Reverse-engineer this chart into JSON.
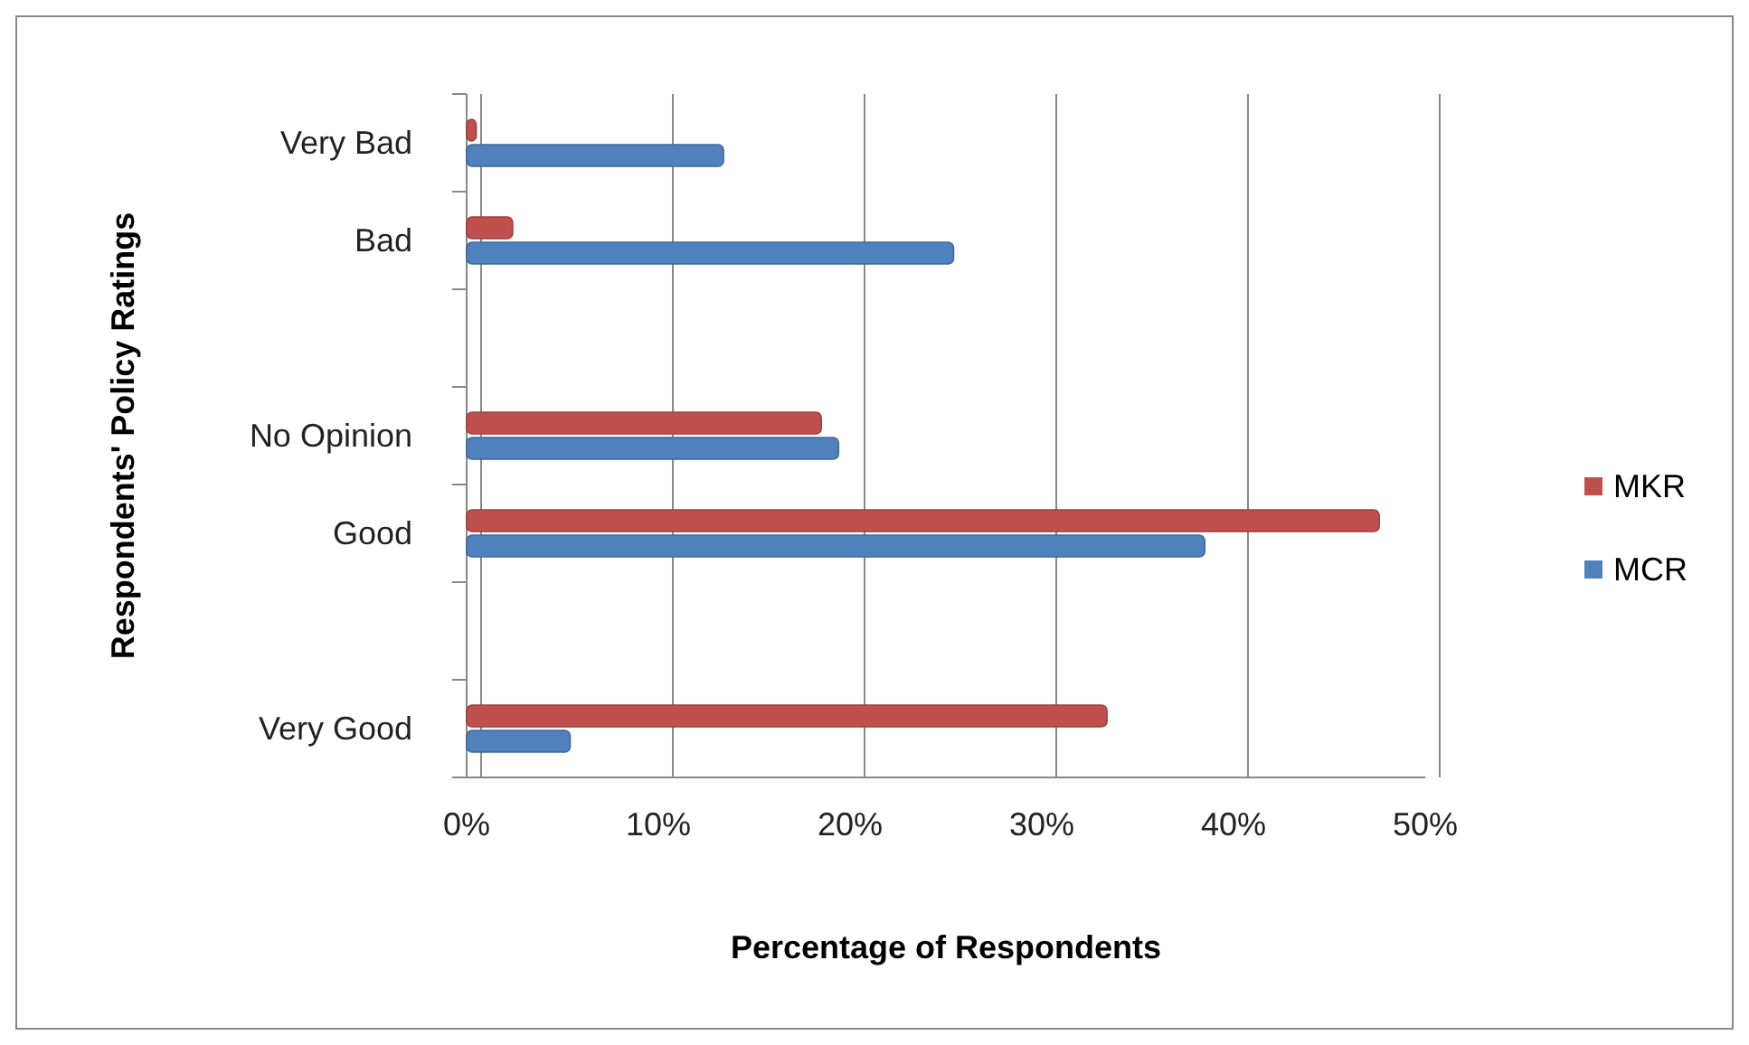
{
  "chart_data": {
    "type": "bar",
    "orientation": "horizontal",
    "xlabel": "Percentage of Respondents",
    "ylabel": "Respondents' Policy Ratings",
    "categories": [
      "Very Bad",
      "Bad",
      null,
      "No Opinion",
      "Good",
      null,
      "Very Good"
    ],
    "series": [
      {
        "name": "MKR",
        "color": "#c0504d",
        "values": [
          0.5,
          2.4,
          null,
          18.5,
          47.6,
          null,
          33.4
        ]
      },
      {
        "name": "MCR",
        "color": "#4f81bd",
        "values": [
          13.4,
          25.4,
          null,
          19.4,
          38.5,
          null,
          5.4
        ]
      }
    ],
    "xlim": [
      0,
      50
    ],
    "xticks": [
      {
        "value": 0,
        "label": "0%"
      },
      {
        "value": 10,
        "label": "10%"
      },
      {
        "value": 20,
        "label": "20%"
      },
      {
        "value": 30,
        "label": "30%"
      },
      {
        "value": 40,
        "label": "40%"
      },
      {
        "value": 50,
        "label": "50%"
      }
    ],
    "grid": "x",
    "legend": "right"
  }
}
